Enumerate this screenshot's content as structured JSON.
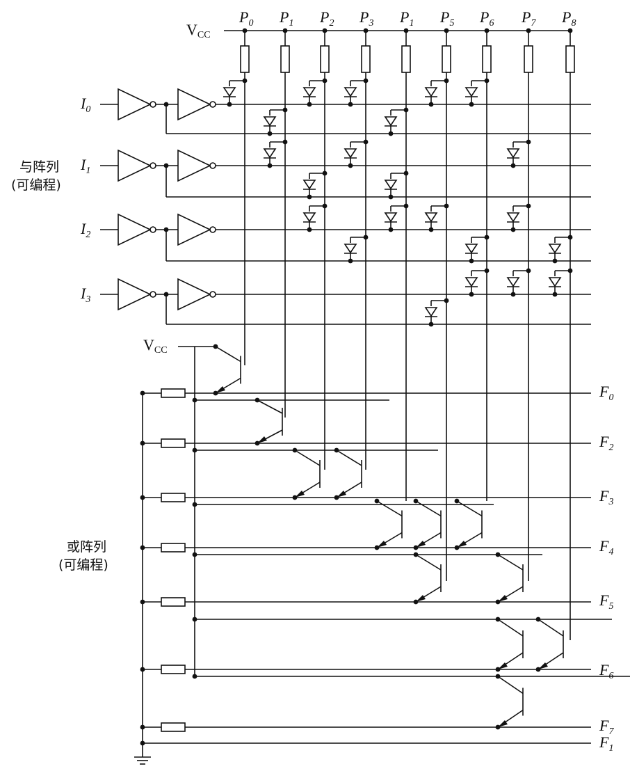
{
  "vcc": {
    "main": "V",
    "sub": "CC"
  },
  "product_terms": [
    {
      "main": "P",
      "sub": "0"
    },
    {
      "main": "P",
      "sub": "1"
    },
    {
      "main": "P",
      "sub": "2"
    },
    {
      "main": "P",
      "sub": "3"
    },
    {
      "main": "P",
      "sub": "1"
    },
    {
      "main": "P",
      "sub": "5"
    },
    {
      "main": "P",
      "sub": "6"
    },
    {
      "main": "P",
      "sub": "7"
    },
    {
      "main": "P",
      "sub": "8"
    }
  ],
  "inputs": [
    {
      "main": "I",
      "sub": "0"
    },
    {
      "main": "I",
      "sub": "1"
    },
    {
      "main": "I",
      "sub": "2"
    },
    {
      "main": "I",
      "sub": "3"
    }
  ],
  "outputs": [
    {
      "main": "F",
      "sub": "0"
    },
    {
      "main": "F",
      "sub": "2"
    },
    {
      "main": "F",
      "sub": "3"
    },
    {
      "main": "F",
      "sub": "4"
    },
    {
      "main": "F",
      "sub": "5"
    },
    {
      "main": "F",
      "sub": "6"
    },
    {
      "main": "F",
      "sub": "7"
    },
    {
      "main": "F",
      "sub": "1"
    }
  ],
  "and_array_label": {
    "line1": "与阵列",
    "line2": "(可编程)"
  },
  "or_array_label": {
    "line1": "或阵列",
    "line2": "(可编程)"
  }
}
